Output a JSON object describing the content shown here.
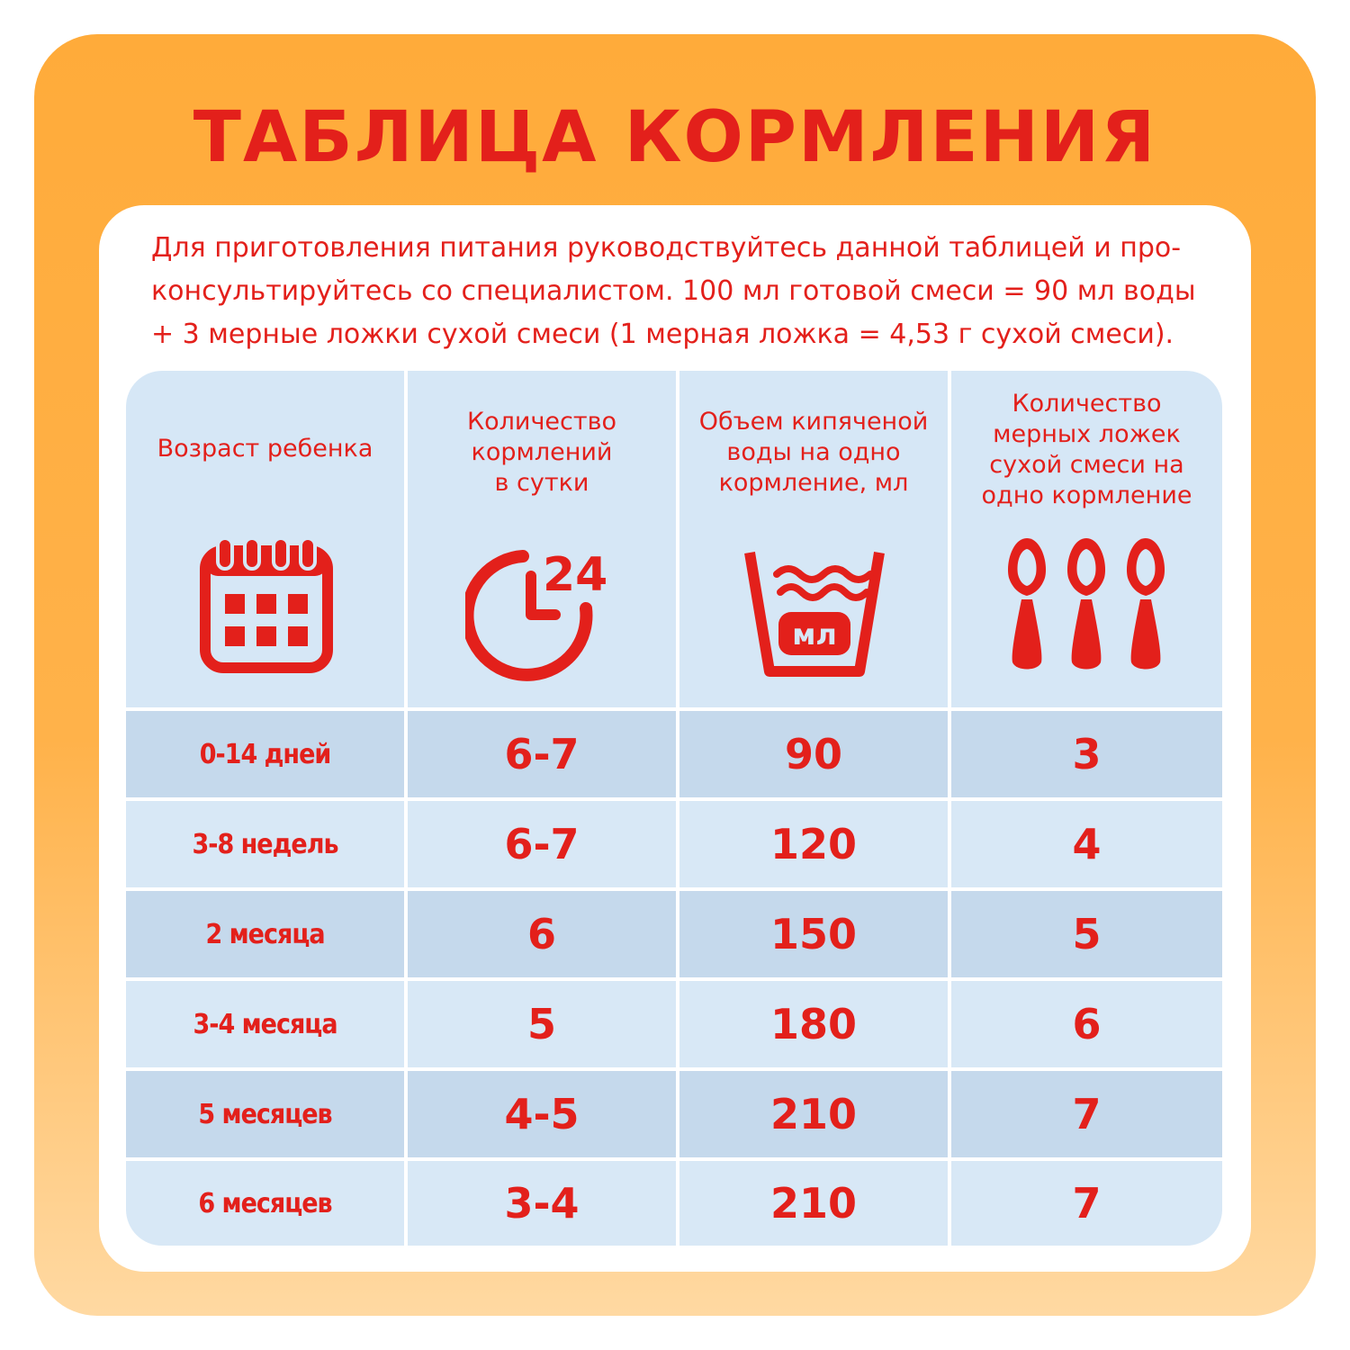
{
  "title": "ТАБЛИЦА КОРМЛЕНИЯ",
  "intro_lines": [
    "Для приготовления питания руководствуйтесь данной таблицей и про-",
    "консультируйтесь со специалистом. 100 мл готовой смеси = 90 мл воды",
    "+ 3 мерные ложки сухой смеси (1 мерная ложка = 4,53 г сухой смеси)."
  ],
  "headers": [
    {
      "lines": [
        "Возраст ребенка"
      ],
      "icon": "calendar-icon"
    },
    {
      "lines": [
        "Количество",
        "кормлений",
        "в сутки"
      ],
      "icon": "clock-24-icon"
    },
    {
      "lines": [
        "Объем кипяченой",
        "воды на одно",
        "кормление, мл"
      ],
      "icon": "water-container-icon",
      "icon_text": "мл"
    },
    {
      "lines": [
        "Количество",
        "мерных ложек",
        "сухой смеси на",
        "одно кормление"
      ],
      "icon": "spoons-icon"
    }
  ],
  "clock_label": "24",
  "rows": [
    {
      "age": "0-14 дней",
      "feedings": "6-7",
      "water": "90",
      "spoons": "3"
    },
    {
      "age": "3-8 недель",
      "feedings": "6-7",
      "water": "120",
      "spoons": "4"
    },
    {
      "age": "2 месяца",
      "feedings": "6",
      "water": "150",
      "spoons": "5"
    },
    {
      "age": "3-4 месяца",
      "feedings": "5",
      "water": "180",
      "spoons": "6"
    },
    {
      "age": "5 месяцев",
      "feedings": "4-5",
      "water": "210",
      "spoons": "7"
    },
    {
      "age": "6 месяцев",
      "feedings": "3-4",
      "water": "210",
      "spoons": "7"
    }
  ],
  "colors": {
    "accent": "#e3201b",
    "orange": "#ffab3a",
    "header_bg": "#d6e7f6",
    "row_dark": "#c5d9ec",
    "row_light": "#d8e8f6"
  }
}
